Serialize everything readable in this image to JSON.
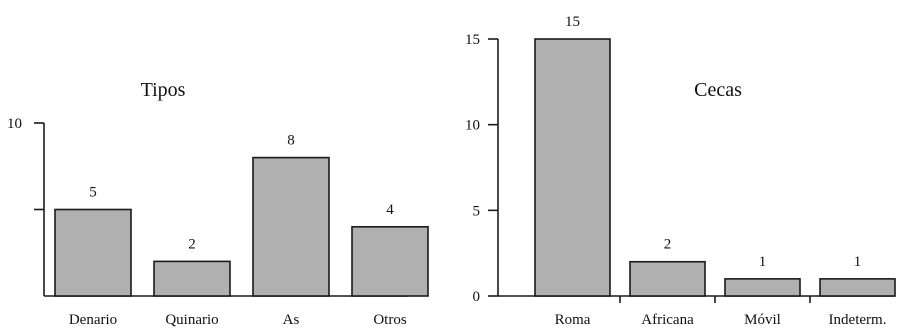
{
  "chart_data": [
    {
      "type": "bar",
      "title": "Tipos",
      "categories": [
        "Denario",
        "Quinario",
        "As",
        "Otros"
      ],
      "values": [
        5,
        2,
        8,
        4
      ],
      "data_labels": [
        "5",
        "2",
        "8",
        "4"
      ],
      "y_ticks": [
        10
      ],
      "y_tick_labels": [
        "10"
      ],
      "y_unlabeled_ticks": [
        5
      ],
      "ylim": [
        0,
        10
      ],
      "xlabel": "",
      "ylabel": "",
      "grid": false,
      "legend": "none",
      "bar_color": "#b0b0b0",
      "edge_color": "#1a1a1a"
    },
    {
      "type": "bar",
      "title": "Cecas",
      "categories": [
        "Roma",
        "Africana",
        "Móvil",
        "Indeterm."
      ],
      "values": [
        15,
        2,
        1,
        1
      ],
      "data_labels": [
        "15",
        "2",
        "1",
        "1"
      ],
      "y_ticks": [
        0,
        5,
        10,
        15
      ],
      "y_tick_labels": [
        "0",
        "5",
        "10",
        "15"
      ],
      "ylim": [
        0,
        15
      ],
      "xlabel": "",
      "ylabel": "",
      "grid": false,
      "legend": "none",
      "bar_color": "#b0b0b0",
      "edge_color": "#1a1a1a"
    }
  ]
}
